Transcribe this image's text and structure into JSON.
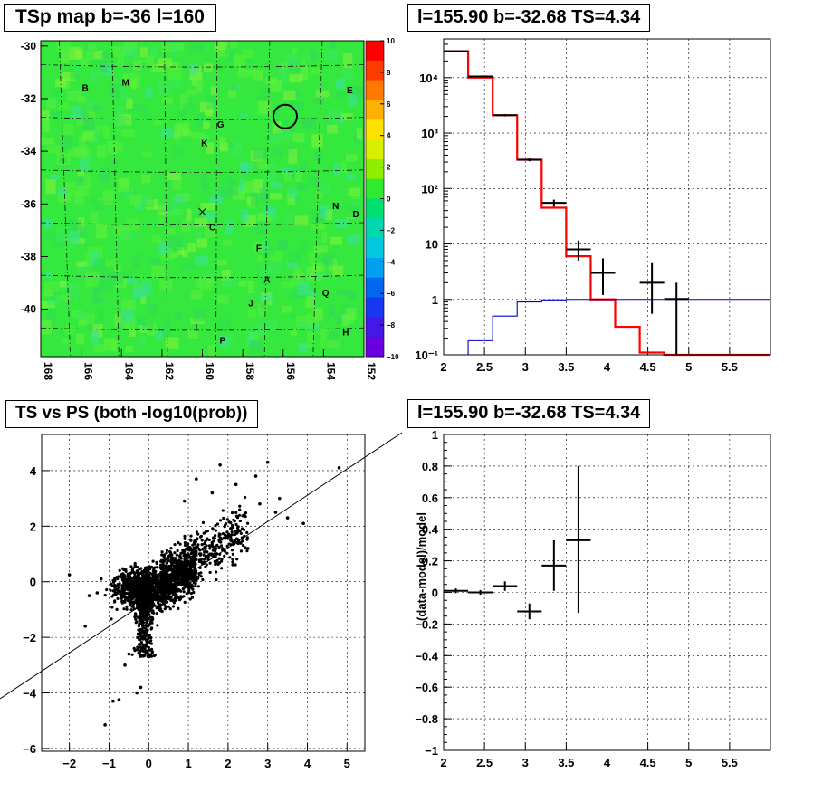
{
  "titles": {
    "map": "TSp map b=-36 l=160",
    "spectrum": "l=155.90 b=-32.68 TS=4.34",
    "scatter": "TS vs PS (both -log10(prob))",
    "residual": "l=155.90 b=-32.68 TS=4.34"
  },
  "colors": {
    "red": "#ff0000",
    "blue": "#0000cc",
    "black": "#000000"
  },
  "chart_data": [
    {
      "type": "heatmap",
      "title": "TSp map b=-36 l=160",
      "x_ticks": [
        "168",
        "166",
        "164",
        "162",
        "160",
        "158",
        "156",
        "154",
        "152"
      ],
      "y_ticks": [
        "-30",
        "-32",
        "-34",
        "-36",
        "-38",
        "-40"
      ],
      "xlim": [
        168,
        152
      ],
      "ylim": [
        -41.8,
        -29.8
      ],
      "colorbar_ticks": [
        "10",
        "8",
        "6",
        "4",
        "2",
        "0",
        "−2",
        "−4",
        "−6",
        "−8",
        "−10"
      ],
      "colorbar_range": [
        -10,
        10
      ],
      "source_labels": [
        {
          "label": "B",
          "l": 165.8,
          "b": -31.7
        },
        {
          "label": "M",
          "l": 163.8,
          "b": -31.5
        },
        {
          "label": "E",
          "l": 152.7,
          "b": -31.8
        },
        {
          "label": "G",
          "l": 159.1,
          "b": -33.1
        },
        {
          "label": "K",
          "l": 159.9,
          "b": -33.8
        },
        {
          "label": "N",
          "l": 153.4,
          "b": -36.2
        },
        {
          "label": "D",
          "l": 152.4,
          "b": -36.5
        },
        {
          "label": "C",
          "l": 159.5,
          "b": -37.0
        },
        {
          "label": "F",
          "l": 157.2,
          "b": -37.8
        },
        {
          "label": "A",
          "l": 156.8,
          "b": -39.0
        },
        {
          "label": "Q",
          "l": 153.9,
          "b": -39.5
        },
        {
          "label": "J",
          "l": 157.6,
          "b": -39.9
        },
        {
          "label": "I",
          "l": 160.3,
          "b": -40.8
        },
        {
          "label": "H",
          "l": 152.9,
          "b": -41.0
        },
        {
          "label": "P",
          "l": 159.0,
          "b": -41.3
        }
      ]
    },
    {
      "type": "line",
      "title": "l=155.90 b=-32.68 TS=4.34",
      "y_scale": "log",
      "xlim": [
        2,
        6
      ],
      "ylim": [
        0.1,
        50000
      ],
      "x_ticks": [
        "2",
        "2.5",
        "3",
        "3.5",
        "4",
        "4.5",
        "5",
        "5.5"
      ],
      "y_ticks": [
        "10⁻¹",
        "1",
        "10",
        "10²",
        "10³",
        "10⁴"
      ],
      "series": [
        {
          "color": "red",
          "edges": [
            2.0,
            2.3,
            2.6,
            2.9,
            3.2,
            3.5,
            3.8,
            4.1,
            4.4,
            4.7,
            5.0,
            5.3,
            5.6,
            6.0
          ],
          "values": [
            30000,
            10000,
            2100,
            330,
            45,
            6,
            1,
            0.32,
            0.11,
            0.1,
            0.1,
            0.1,
            0.1
          ]
        },
        {
          "color": "blue",
          "edges": [
            2.0,
            2.3,
            2.6,
            2.9,
            3.2,
            3.5,
            3.8,
            4.1,
            4.4,
            4.7,
            5.0,
            5.3,
            5.6,
            6.0
          ],
          "values": [
            0.1,
            0.18,
            0.5,
            0.9,
            0.98,
            1,
            1,
            1,
            1,
            1,
            1,
            1,
            1
          ]
        }
      ],
      "points": [
        {
          "x": 2.15,
          "xerr": 0.15,
          "y": 30000,
          "ylo": 29500,
          "yhi": 30500
        },
        {
          "x": 2.45,
          "xerr": 0.15,
          "y": 10500,
          "ylo": 10200,
          "yhi": 10800
        },
        {
          "x": 2.75,
          "xerr": 0.15,
          "y": 2100,
          "ylo": 2000,
          "yhi": 2200
        },
        {
          "x": 3.05,
          "xerr": 0.15,
          "y": 330,
          "ylo": 310,
          "yhi": 350
        },
        {
          "x": 3.35,
          "xerr": 0.15,
          "y": 55,
          "ylo": 47,
          "yhi": 63
        },
        {
          "x": 3.65,
          "xerr": 0.15,
          "y": 8,
          "ylo": 5,
          "yhi": 11.5
        },
        {
          "x": 3.95,
          "xerr": 0.15,
          "y": 3,
          "ylo": 1.2,
          "yhi": 5.5
        },
        {
          "x": 4.55,
          "xerr": 0.15,
          "y": 2,
          "ylo": 0.55,
          "yhi": 4.5
        },
        {
          "x": 4.85,
          "xerr": 0.15,
          "y": 1.02,
          "ylo": 0.1,
          "yhi": 2
        }
      ]
    },
    {
      "type": "scatter",
      "title": "TS vs PS (both -log10(prob))",
      "xlim": [
        -2.7,
        5.45
      ],
      "ylim": [
        -6.1,
        5.3
      ],
      "x_ticks": [
        "−2",
        "−1",
        "0",
        "1",
        "2",
        "3",
        "4",
        "5"
      ],
      "y_ticks": [
        "−6",
        "−4",
        "−2",
        "0",
        "2",
        "4"
      ],
      "reference_line": {
        "x1": -3,
        "y1": -3.5,
        "x2": 6,
        "y2": 5.0
      },
      "outliers": [
        [
          -2.0,
          0.25
        ],
        [
          -1.6,
          -1.6
        ],
        [
          -1.3,
          -0.4
        ],
        [
          -1.1,
          -5.15
        ],
        [
          -0.9,
          -4.3
        ],
        [
          -0.75,
          -4.25
        ],
        [
          -0.6,
          -3.0
        ],
        [
          -0.5,
          -2.6
        ],
        [
          -0.2,
          -3.8
        ],
        [
          -0.3,
          -4.0
        ],
        [
          -1.5,
          -0.5
        ],
        [
          -1.2,
          0.1
        ],
        [
          1.8,
          4.2
        ],
        [
          2.7,
          3.8
        ],
        [
          3.0,
          4.3
        ],
        [
          4.8,
          4.1
        ],
        [
          3.3,
          3.0
        ],
        [
          3.9,
          2.1
        ],
        [
          2.5,
          1.2
        ],
        [
          2.2,
          3.5
        ],
        [
          3.2,
          2.5
        ],
        [
          1.2,
          3.7
        ],
        [
          1.6,
          3.2
        ],
        [
          2.8,
          2.8
        ],
        [
          0.9,
          2.9
        ],
        [
          3.5,
          2.3
        ]
      ]
    },
    {
      "type": "scatter",
      "title": "l=155.90 b=-32.68 TS=4.34",
      "ylabel": "(data-model)/model",
      "xlim": [
        2,
        6
      ],
      "ylim": [
        -1,
        1
      ],
      "x_ticks": [
        "2",
        "2.5",
        "3",
        "3.5",
        "4",
        "4.5",
        "5",
        "5.5"
      ],
      "y_ticks": [
        "−1",
        "−0.8",
        "−0.6",
        "−0.4",
        "−0.2",
        "0",
        "0.2",
        "0.4",
        "0.6",
        "0.8",
        "1"
      ],
      "points": [
        {
          "x": 2.15,
          "xerr": 0.15,
          "y": 0.01,
          "ylo": -0.005,
          "yhi": 0.025
        },
        {
          "x": 2.45,
          "xerr": 0.15,
          "y": 0.0,
          "ylo": -0.015,
          "yhi": 0.015
        },
        {
          "x": 2.75,
          "xerr": 0.15,
          "y": 0.04,
          "ylo": 0.01,
          "yhi": 0.07
        },
        {
          "x": 3.05,
          "xerr": 0.15,
          "y": -0.12,
          "ylo": -0.17,
          "yhi": -0.07
        },
        {
          "x": 3.35,
          "xerr": 0.15,
          "y": 0.17,
          "ylo": 0.01,
          "yhi": 0.33
        },
        {
          "x": 3.65,
          "xerr": 0.15,
          "y": 0.33,
          "ylo": -0.13,
          "yhi": 0.8
        }
      ]
    }
  ]
}
